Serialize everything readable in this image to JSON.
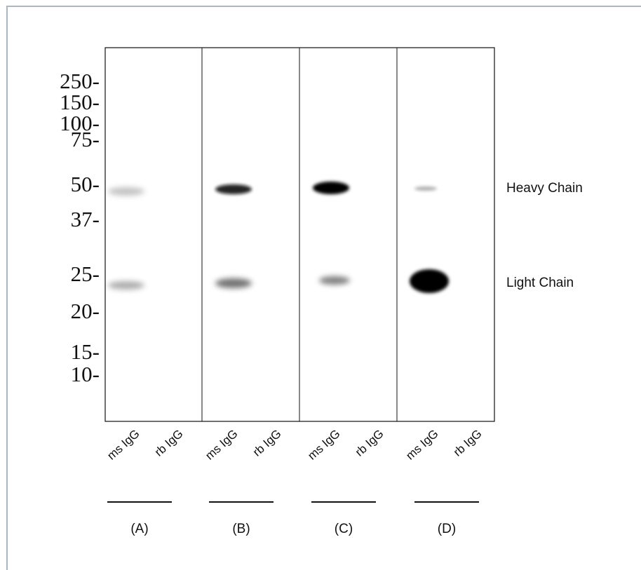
{
  "markers": [
    "250-",
    "150-",
    "100-",
    "75-",
    "50-",
    "37-",
    "25-",
    "20-",
    "15-",
    "10-"
  ],
  "lanes": [
    "ms IgG",
    "rb IgG",
    "ms IgG",
    "rb IgG",
    "ms IgG",
    "rb IgG",
    "ms IgG",
    "rb IgG"
  ],
  "panels": [
    "(A)",
    "(B)",
    "(C)",
    "(D)"
  ],
  "band_labels": [
    "Heavy Chain",
    "Light Chain"
  ]
}
